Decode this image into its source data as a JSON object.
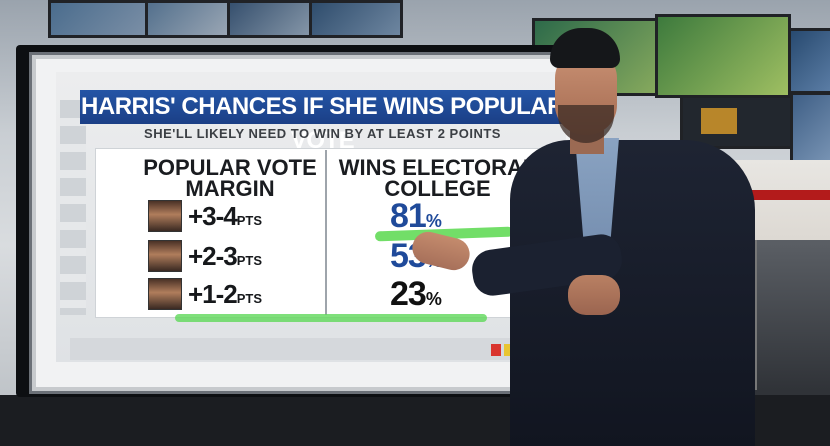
{
  "graphic": {
    "headline": "HARRIS' CHANCES IF SHE WINS POPULAR VOTE",
    "subhead": "SHE'LL LIKELY NEED TO WIN BY AT LEAST 2 POINTS",
    "left_column_header": "POPULAR VOTE MARGIN",
    "right_column_header": "WINS ELECTORAL COLLEGE",
    "rows": [
      {
        "margin": "+3-4",
        "unit": "PTS",
        "chance": "81",
        "pct_sign": "%",
        "color": "#1f4a9a"
      },
      {
        "margin": "+2-3",
        "unit": "PTS",
        "chance": "53",
        "pct_sign": "%",
        "color": "#1f4a9a"
      },
      {
        "margin": "+1-2",
        "unit": "PTS",
        "chance": "23",
        "pct_sign": "%",
        "color": "#111111"
      }
    ]
  },
  "colors": {
    "headline_bg": "#2455a6",
    "telestrator": "#59d84d",
    "accent_red": "#b4262a"
  }
}
